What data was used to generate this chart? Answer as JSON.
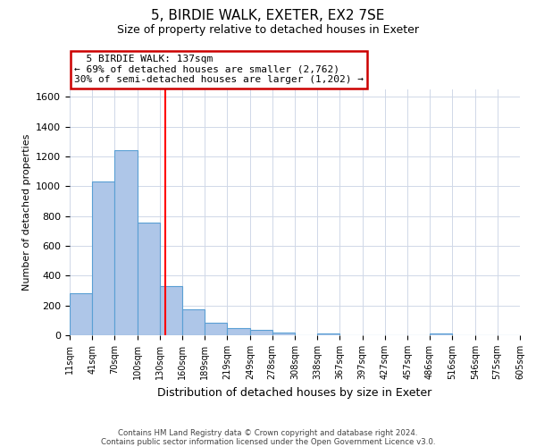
{
  "title": "5, BIRDIE WALK, EXETER, EX2 7SE",
  "subtitle": "Size of property relative to detached houses in Exeter",
  "xlabel": "Distribution of detached houses by size in Exeter",
  "ylabel": "Number of detached properties",
  "bar_color": "#aec6e8",
  "bar_edge_color": "#5a9fd4",
  "red_line_x": 137,
  "annotation_title": "5 BIRDIE WALK: 137sqm",
  "annotation_line1": "← 69% of detached houses are smaller (2,762)",
  "annotation_line2": "30% of semi-detached houses are larger (1,202) →",
  "annotation_box_color": "#ffffff",
  "annotation_box_edge": "#cc0000",
  "footnote1": "Contains HM Land Registry data © Crown copyright and database right 2024.",
  "footnote2": "Contains public sector information licensed under the Open Government Licence v3.0.",
  "bin_edges": [
    11,
    41,
    70,
    100,
    130,
    160,
    189,
    219,
    249,
    278,
    308,
    338,
    367,
    397,
    427,
    457,
    486,
    516,
    546,
    575,
    605
  ],
  "bin_values": [
    285,
    1035,
    1240,
    755,
    330,
    175,
    85,
    50,
    35,
    20,
    0,
    10,
    0,
    0,
    0,
    0,
    10,
    0,
    0,
    0
  ],
  "ylim": [
    0,
    1650
  ],
  "yticks": [
    0,
    200,
    400,
    600,
    800,
    1000,
    1200,
    1400,
    1600
  ],
  "bg_color": "#ffffff",
  "grid_color": "#d0d8e8"
}
